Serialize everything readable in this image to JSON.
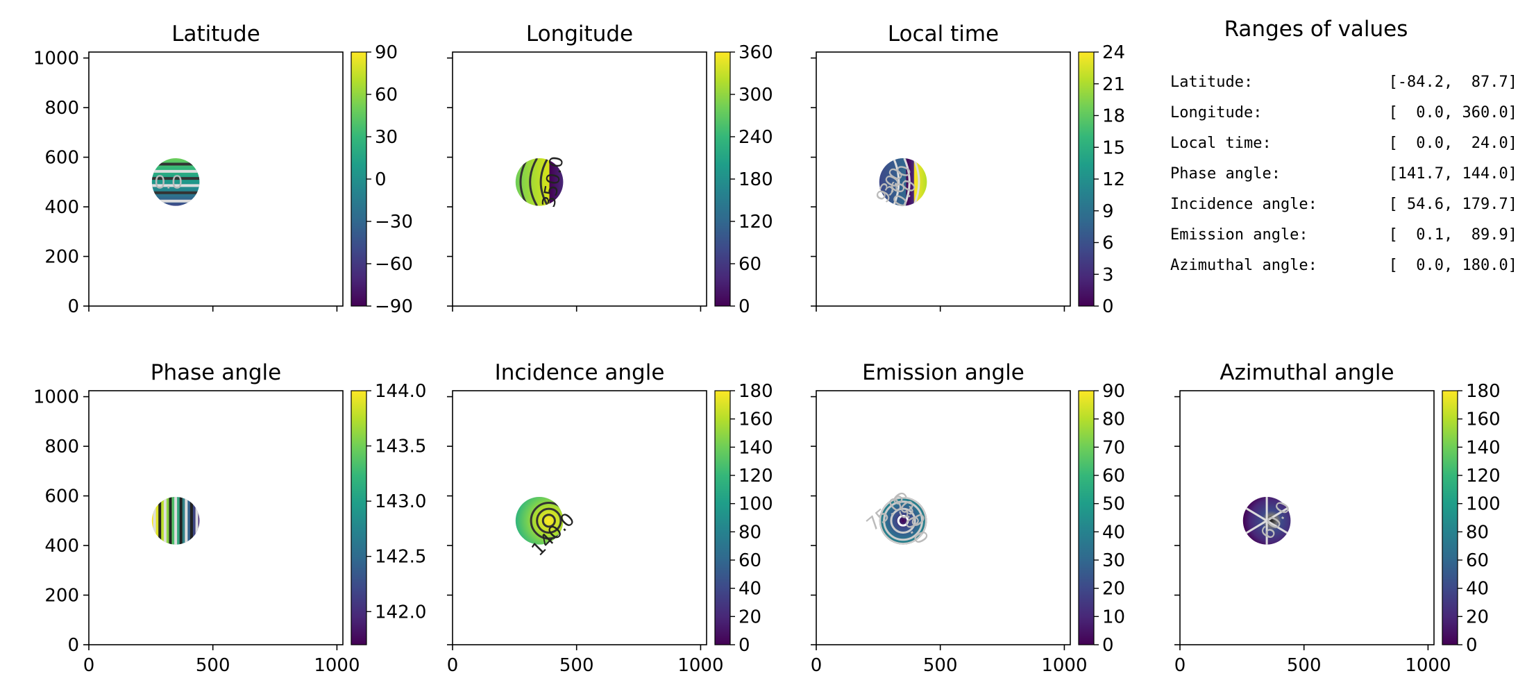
{
  "colors": {
    "viridis": [
      "#440154",
      "#482878",
      "#3e4989",
      "#31688e",
      "#26828e",
      "#1f9e89",
      "#35b779",
      "#6ece58",
      "#b5de2b",
      "#fde725"
    ]
  },
  "chart_data": [
    {
      "type": "heatmap",
      "title": "Latitude",
      "xlim": [
        0,
        1024
      ],
      "ylim": [
        0,
        1024
      ],
      "x_ticks": [
        "0",
        "500",
        "1000"
      ],
      "y_ticks": [
        "0",
        "200",
        "400",
        "600",
        "800",
        "1000"
      ],
      "show_xticklabels": false,
      "show_yticklabels": true,
      "disk": {
        "cx": 350,
        "cy": 500,
        "r": 96
      },
      "colorbar": {
        "min": -90,
        "max": 90,
        "ticks": [
          -90,
          -60,
          -30,
          0,
          30,
          60,
          90
        ],
        "tick_labels": [
          "−90",
          "−60",
          "−30",
          "0",
          "30",
          "60",
          "90"
        ]
      },
      "contour_labels": [
        "0.0"
      ]
    },
    {
      "type": "heatmap",
      "title": "Longitude",
      "xlim": [
        0,
        1024
      ],
      "ylim": [
        0,
        1024
      ],
      "x_ticks": [
        "0",
        "500",
        "1000"
      ],
      "y_ticks": [
        "0",
        "200",
        "400",
        "600",
        "800",
        "1000"
      ],
      "show_xticklabels": false,
      "show_yticklabels": false,
      "disk": {
        "cx": 350,
        "cy": 500,
        "r": 96
      },
      "colorbar": {
        "min": 0,
        "max": 360,
        "ticks": [
          0,
          60,
          120,
          180,
          240,
          300,
          360
        ],
        "tick_labels": [
          "0",
          "60",
          "120",
          "180",
          "240",
          "300",
          "360"
        ]
      },
      "contour_labels": [
        "350.0"
      ]
    },
    {
      "type": "heatmap",
      "title": "Local time",
      "xlim": [
        0,
        1024
      ],
      "ylim": [
        0,
        1024
      ],
      "x_ticks": [
        "0",
        "500",
        "1000"
      ],
      "y_ticks": [
        "0",
        "200",
        "400",
        "600",
        "800",
        "1000"
      ],
      "show_xticklabels": false,
      "show_yticklabels": false,
      "disk": {
        "cx": 350,
        "cy": 500,
        "r": 96
      },
      "colorbar": {
        "min": 0,
        "max": 24,
        "ticks": [
          0,
          3,
          6,
          9,
          12,
          15,
          18,
          21,
          24
        ],
        "tick_labels": [
          "0",
          "3",
          "6",
          "9",
          "12",
          "15",
          "18",
          "21",
          "24"
        ]
      },
      "contour_labels": [
        "3.0",
        "6.0",
        "9.0",
        "0.0"
      ]
    },
    {
      "type": "heatmap",
      "title": "Phase angle",
      "xlim": [
        0,
        1024
      ],
      "ylim": [
        0,
        1024
      ],
      "x_ticks": [
        "0",
        "500",
        "1000"
      ],
      "y_ticks": [
        "0",
        "200",
        "400",
        "600",
        "800",
        "1000"
      ],
      "show_xticklabels": true,
      "show_yticklabels": true,
      "disk": {
        "cx": 350,
        "cy": 500,
        "r": 96
      },
      "colorbar": {
        "min": 141.7,
        "max": 144.0,
        "ticks": [
          142.0,
          142.5,
          143.0,
          143.5,
          144.0
        ],
        "tick_labels": [
          "142.0",
          "142.5",
          "143.0",
          "143.5",
          "144.0"
        ]
      },
      "contour_labels": []
    },
    {
      "type": "heatmap",
      "title": "Incidence angle",
      "xlim": [
        0,
        1024
      ],
      "ylim": [
        0,
        1024
      ],
      "x_ticks": [
        "0",
        "500",
        "1000"
      ],
      "y_ticks": [
        "0",
        "200",
        "400",
        "600",
        "800",
        "1000"
      ],
      "show_xticklabels": true,
      "show_yticklabels": false,
      "disk": {
        "cx": 350,
        "cy": 500,
        "r": 96
      },
      "colorbar": {
        "min": 0,
        "max": 180,
        "ticks": [
          0,
          20,
          40,
          60,
          80,
          100,
          120,
          140,
          160,
          180
        ],
        "tick_labels": [
          "0",
          "20",
          "40",
          "60",
          "80",
          "100",
          "120",
          "140",
          "160",
          "180"
        ]
      },
      "contour_labels": [
        "140.0"
      ]
    },
    {
      "type": "heatmap",
      "title": "Emission angle",
      "xlim": [
        0,
        1024
      ],
      "ylim": [
        0,
        1024
      ],
      "x_ticks": [
        "0",
        "500",
        "1000"
      ],
      "y_ticks": [
        "0",
        "200",
        "400",
        "600",
        "800",
        "1000"
      ],
      "show_xticklabels": true,
      "show_yticklabels": false,
      "disk": {
        "cx": 350,
        "cy": 500,
        "r": 96
      },
      "colorbar": {
        "min": 0,
        "max": 90,
        "ticks": [
          0,
          10,
          20,
          30,
          40,
          50,
          60,
          70,
          80,
          90
        ],
        "tick_labels": [
          "0",
          "10",
          "20",
          "30",
          "40",
          "50",
          "60",
          "70",
          "80",
          "90"
        ]
      },
      "contour_labels": [
        "75.0",
        "60.0",
        "30.0"
      ]
    },
    {
      "type": "heatmap",
      "title": "Azimuthal angle",
      "xlim": [
        0,
        1024
      ],
      "ylim": [
        0,
        1024
      ],
      "x_ticks": [
        "0",
        "500",
        "1000"
      ],
      "y_ticks": [
        "0",
        "200",
        "400",
        "600",
        "800",
        "1000"
      ],
      "show_xticklabels": true,
      "show_yticklabels": false,
      "disk": {
        "cx": 350,
        "cy": 500,
        "r": 96
      },
      "colorbar": {
        "min": 0,
        "max": 180,
        "ticks": [
          0,
          20,
          40,
          60,
          80,
          100,
          120,
          140,
          160,
          180
        ],
        "tick_labels": [
          "0",
          "20",
          "40",
          "60",
          "80",
          "100",
          "120",
          "140",
          "160",
          "180"
        ]
      },
      "contour_labels": [
        "60.0"
      ]
    }
  ],
  "ranges_panel": {
    "title": "Ranges of values",
    "rows": [
      {
        "label": "Latitude:",
        "value": "[-84.2,  87.7]"
      },
      {
        "label": "Longitude:",
        "value": "[  0.0, 360.0]"
      },
      {
        "label": "Local time:",
        "value": "[  0.0,  24.0]"
      },
      {
        "label": "Phase angle:",
        "value": "[141.7, 144.0]"
      },
      {
        "label": "Incidence angle:",
        "value": "[ 54.6, 179.7]"
      },
      {
        "label": "Emission angle:",
        "value": "[  0.1,  89.9]"
      },
      {
        "label": "Azimuthal angle:",
        "value": "[  0.0, 180.0]"
      }
    ]
  }
}
